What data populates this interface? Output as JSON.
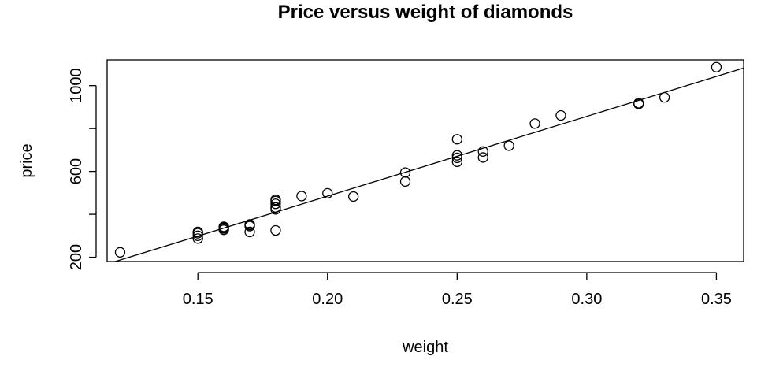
{
  "chart_data": {
    "type": "scatter",
    "title": "Price versus weight of diamonds",
    "xlabel": "weight",
    "ylabel": "price",
    "xlim": [
      0.115,
      0.3605
    ],
    "ylim": [
      180,
      1120
    ],
    "x_ticks": [
      0.15,
      0.2,
      0.25,
      0.3,
      0.35
    ],
    "x_tick_labels": [
      "0.15",
      "0.20",
      "0.25",
      "0.30",
      "0.35"
    ],
    "y_ticks": [
      200,
      400,
      600,
      800,
      1000
    ],
    "y_tick_labels": [
      "200",
      "",
      "600",
      "",
      "1000"
    ],
    "points": [
      {
        "x": 0.12,
        "y": 223
      },
      {
        "x": 0.15,
        "y": 287
      },
      {
        "x": 0.15,
        "y": 300
      },
      {
        "x": 0.15,
        "y": 312
      },
      {
        "x": 0.15,
        "y": 318
      },
      {
        "x": 0.16,
        "y": 328
      },
      {
        "x": 0.16,
        "y": 334
      },
      {
        "x": 0.16,
        "y": 338
      },
      {
        "x": 0.16,
        "y": 342
      },
      {
        "x": 0.17,
        "y": 318
      },
      {
        "x": 0.17,
        "y": 345
      },
      {
        "x": 0.17,
        "y": 350
      },
      {
        "x": 0.17,
        "y": 353
      },
      {
        "x": 0.18,
        "y": 325
      },
      {
        "x": 0.18,
        "y": 423
      },
      {
        "x": 0.18,
        "y": 432
      },
      {
        "x": 0.18,
        "y": 449
      },
      {
        "x": 0.18,
        "y": 462
      },
      {
        "x": 0.18,
        "y": 468
      },
      {
        "x": 0.19,
        "y": 485
      },
      {
        "x": 0.2,
        "y": 498
      },
      {
        "x": 0.21,
        "y": 483
      },
      {
        "x": 0.23,
        "y": 553
      },
      {
        "x": 0.23,
        "y": 595
      },
      {
        "x": 0.25,
        "y": 645
      },
      {
        "x": 0.25,
        "y": 663
      },
      {
        "x": 0.25,
        "y": 675
      },
      {
        "x": 0.25,
        "y": 750
      },
      {
        "x": 0.26,
        "y": 665
      },
      {
        "x": 0.26,
        "y": 693
      },
      {
        "x": 0.27,
        "y": 720
      },
      {
        "x": 0.28,
        "y": 823
      },
      {
        "x": 0.29,
        "y": 861
      },
      {
        "x": 0.32,
        "y": 914
      },
      {
        "x": 0.32,
        "y": 918
      },
      {
        "x": 0.33,
        "y": 945
      },
      {
        "x": 0.35,
        "y": 1086
      }
    ],
    "regression_line": {
      "intercept": -259.6,
      "slope": 3721
    }
  }
}
